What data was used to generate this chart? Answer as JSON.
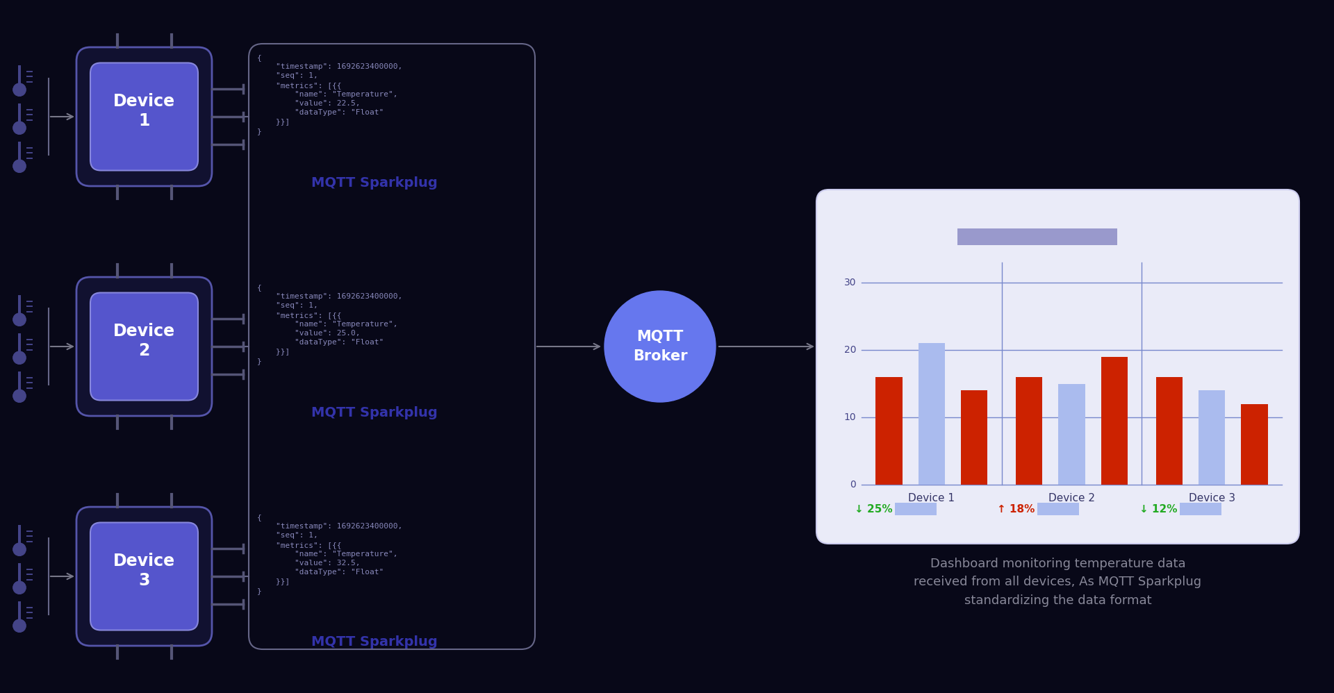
{
  "bg_color": "#080818",
  "device_box_fill": "#5555cc",
  "device_box_border": "#8888dd",
  "device_box_outer_fill": "#111130",
  "device_box_outer_border": "#5555aa",
  "device_label_color": "#ffffff",
  "mqtt_sparkplug_color": "#3333aa",
  "mqtt_broker_color": "#6677ee",
  "arrow_color": "#777788",
  "dashboard_bg": "#eaebf8",
  "dashboard_border": "#ccccee",
  "bar_red": "#cc2200",
  "bar_blue": "#aabbee",
  "bar_data_d1": [
    16,
    21,
    14
  ],
  "bar_data_d2": [
    16,
    15,
    19
  ],
  "bar_data_d3": [
    16,
    14,
    12
  ],
  "chart_line_color": "#7788cc",
  "chart_ytick_color": "#444488",
  "leg_down_color": "#22aa22",
  "leg_up_color": "#cc2200",
  "leg_swatch_color": "#aabbee",
  "caption_color": "#888899",
  "json_color": "#8888bb",
  "therm_bulb_color": "#444488",
  "therm_stem_color": "#444488",
  "connector_color": "#666688",
  "pin_color": "#555577",
  "json_texts": [
    "{\n    \"timestamp\": 1692623400000,\n    \"seq\": 1,\n    \"metrics\": [{{\n        \"name\": \"Temperature\",\n        \"value\": 22.5,\n        \"dataType\": \"Float\"\n    }}]\n}",
    "{\n    \"timestamp\": 1692623400000,\n    \"seq\": 1,\n    \"metrics\": [{{\n        \"name\": \"Temperature\",\n        \"value\": 25.0,\n        \"dataType\": \"Float\"\n    }}]\n}",
    "{\n    \"timestamp\": 1692623400000,\n    \"seq\": 1,\n    \"metrics\": [{{\n        \"name\": \"Temperature\",\n        \"value\": 32.5,\n        \"dataType\": \"Float\"\n    }}]\n}"
  ]
}
